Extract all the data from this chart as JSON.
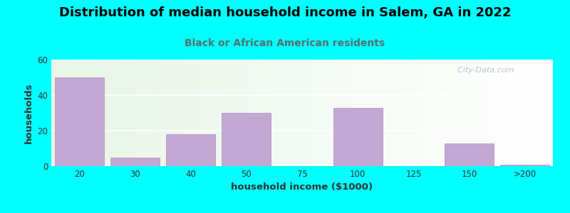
{
  "title": "Distribution of median household income in Salem, GA in 2022",
  "subtitle": "Black or African American residents",
  "xlabel": "household income ($1000)",
  "ylabel": "households",
  "background_outer": "#00FFFF",
  "bar_color": "#C4A8D4",
  "bar_edge_color": "#B898C8",
  "categories": [
    "20",
    "30",
    "40",
    "50",
    "75",
    "100",
    "125",
    "150",
    ">200"
  ],
  "values": [
    50,
    5,
    18,
    30,
    0,
    33,
    0,
    13,
    1
  ],
  "ylim": [
    0,
    60
  ],
  "yticks": [
    0,
    20,
    40,
    60
  ],
  "title_fontsize": 13,
  "subtitle_fontsize": 10,
  "axis_label_fontsize": 9.5,
  "tick_fontsize": 8.5,
  "watermark_text": "  City-Data.com",
  "grid_color": "#FFFFFF",
  "subtitle_color": "#557070"
}
